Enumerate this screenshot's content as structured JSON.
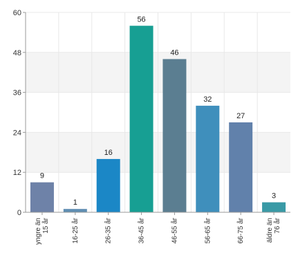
{
  "chart_data": {
    "type": "bar",
    "categories": [
      [
        "yngre än",
        "15 år"
      ],
      [
        "16-25 år"
      ],
      [
        "26-35 år"
      ],
      [
        "36-45 år"
      ],
      [
        "46-55 år"
      ],
      [
        "56-65 år"
      ],
      [
        "66-75 år"
      ],
      [
        "äldre än",
        "76 år"
      ]
    ],
    "values": [
      9,
      1,
      16,
      56,
      46,
      32,
      27,
      3
    ],
    "title": "",
    "xlabel": "",
    "ylabel": "",
    "ylim": [
      0,
      60
    ],
    "yticks": [
      0,
      12,
      24,
      36,
      48,
      60
    ],
    "grid": true,
    "bar_colors": [
      "#6e82a8",
      "#5f8eb3",
      "#1b87c6",
      "#179f93",
      "#5b7e91",
      "#3f8fbc",
      "#6181ab",
      "#3a9aa6"
    ],
    "axis_color": "#999999",
    "grid_color": "#e8e8e8",
    "band_color": "#f4f4f4"
  }
}
